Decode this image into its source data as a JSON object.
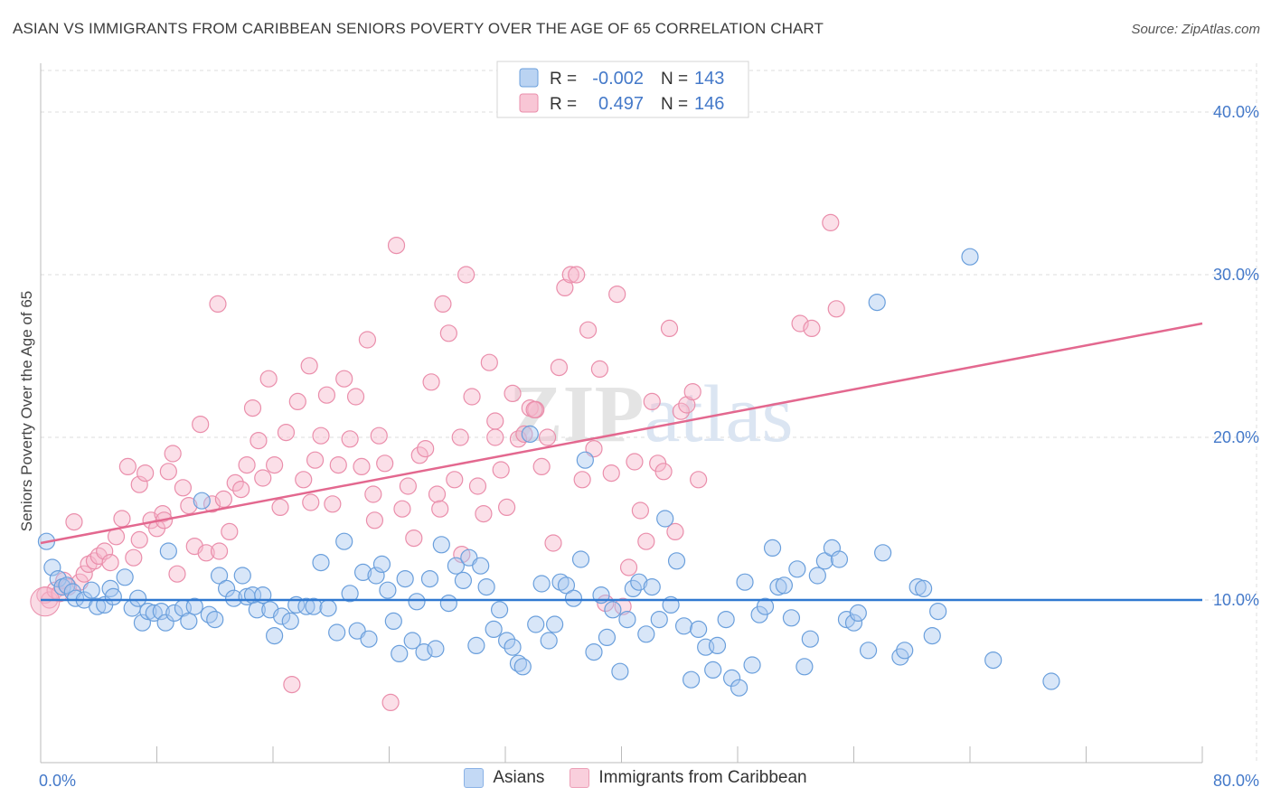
{
  "title": "ASIAN VS IMMIGRANTS FROM CARIBBEAN SENIORS POVERTY OVER THE AGE OF 65 CORRELATION CHART",
  "source": "Source: ZipAtlas.com",
  "watermark": "ZIPatlas",
  "colors": {
    "blue_fill": "#a9c8ef",
    "blue_stroke": "#6a9fdc",
    "blue_line": "#2f78d0",
    "pink_fill": "#f6b8cb",
    "pink_stroke": "#ea8eab",
    "pink_line": "#e3688f",
    "axis_text": "#4479c9",
    "grid": "#dddddd"
  },
  "stats_legend": [
    {
      "r_label": "R =",
      "r_value": "-0.002",
      "n_label": "N =",
      "n_value": "143",
      "color": "#a9c8ef"
    },
    {
      "r_label": "R =",
      "r_value": "0.497",
      "n_label": "N =",
      "n_value": "146",
      "color": "#f6b8cb"
    }
  ],
  "bottom_legend": [
    {
      "label": "Asians",
      "color": "#a9c8ef"
    },
    {
      "label": "Immigrants from Caribbean",
      "color": "#f6b8cb"
    }
  ],
  "chart_data": {
    "type": "scatter",
    "title": "ASIAN VS IMMIGRANTS FROM CARIBBEAN SENIORS POVERTY OVER THE AGE OF 65 CORRELATION CHART",
    "xlabel": "",
    "ylabel": "Seniors Poverty Over the Age of 65",
    "xlim": [
      0,
      80
    ],
    "ylim": [
      0,
      43
    ],
    "x_tick_labels": [
      "0.0%",
      "80.0%"
    ],
    "y_ticks": [
      10,
      20,
      30,
      40
    ],
    "y_tick_labels": [
      "10.0%",
      "20.0%",
      "30.0%",
      "40.0%"
    ],
    "grid": true,
    "series": [
      {
        "name": "Asians",
        "trend": {
          "x": [
            0,
            80
          ],
          "y": [
            10.0,
            10.0
          ]
        },
        "points": [
          [
            0.4,
            13.6
          ],
          [
            0.8,
            12.0
          ],
          [
            1.2,
            11.3
          ],
          [
            1.5,
            10.8
          ],
          [
            1.8,
            10.9
          ],
          [
            2.2,
            10.5
          ],
          [
            2.4,
            10.1
          ],
          [
            3.0,
            10.0
          ],
          [
            3.5,
            10.6
          ],
          [
            3.9,
            9.6
          ],
          [
            4.4,
            9.7
          ],
          [
            4.8,
            10.7
          ],
          [
            5.0,
            10.2
          ],
          [
            5.8,
            11.4
          ],
          [
            6.3,
            9.5
          ],
          [
            6.7,
            10.1
          ],
          [
            7.0,
            8.6
          ],
          [
            7.4,
            9.3
          ],
          [
            7.8,
            9.2
          ],
          [
            8.3,
            9.3
          ],
          [
            8.6,
            8.6
          ],
          [
            8.8,
            13.0
          ],
          [
            9.2,
            9.2
          ],
          [
            9.8,
            9.5
          ],
          [
            10.2,
            8.7
          ],
          [
            10.6,
            9.6
          ],
          [
            11.1,
            16.1
          ],
          [
            11.6,
            9.1
          ],
          [
            12.0,
            8.8
          ],
          [
            12.3,
            11.5
          ],
          [
            12.8,
            10.7
          ],
          [
            13.3,
            10.1
          ],
          [
            13.9,
            11.5
          ],
          [
            14.2,
            10.2
          ],
          [
            14.6,
            10.3
          ],
          [
            14.9,
            9.4
          ],
          [
            15.3,
            10.3
          ],
          [
            15.8,
            9.4
          ],
          [
            16.1,
            7.8
          ],
          [
            16.6,
            9.0
          ],
          [
            17.2,
            8.7
          ],
          [
            17.6,
            9.7
          ],
          [
            18.3,
            9.6
          ],
          [
            18.8,
            9.6
          ],
          [
            19.3,
            12.3
          ],
          [
            19.8,
            9.5
          ],
          [
            20.4,
            8.0
          ],
          [
            20.9,
            13.6
          ],
          [
            21.3,
            10.4
          ],
          [
            21.8,
            8.1
          ],
          [
            22.2,
            11.7
          ],
          [
            22.6,
            7.6
          ],
          [
            23.1,
            11.5
          ],
          [
            23.5,
            12.2
          ],
          [
            23.9,
            10.6
          ],
          [
            24.3,
            8.7
          ],
          [
            24.7,
            6.7
          ],
          [
            25.1,
            11.3
          ],
          [
            25.6,
            7.5
          ],
          [
            25.9,
            9.9
          ],
          [
            26.4,
            6.8
          ],
          [
            26.8,
            11.3
          ],
          [
            27.2,
            7.0
          ],
          [
            27.6,
            13.4
          ],
          [
            28.1,
            9.8
          ],
          [
            28.6,
            12.1
          ],
          [
            29.1,
            11.2
          ],
          [
            29.5,
            12.6
          ],
          [
            30.0,
            7.2
          ],
          [
            30.3,
            12.1
          ],
          [
            30.7,
            10.8
          ],
          [
            31.2,
            8.2
          ],
          [
            31.6,
            9.4
          ],
          [
            32.1,
            7.5
          ],
          [
            32.5,
            7.1
          ],
          [
            32.9,
            6.1
          ],
          [
            33.2,
            5.9
          ],
          [
            33.7,
            20.2
          ],
          [
            34.1,
            8.5
          ],
          [
            34.5,
            11.0
          ],
          [
            35.0,
            7.5
          ],
          [
            35.4,
            8.5
          ],
          [
            35.8,
            11.1
          ],
          [
            36.2,
            10.9
          ],
          [
            36.7,
            10.1
          ],
          [
            37.2,
            12.5
          ],
          [
            37.5,
            18.6
          ],
          [
            38.1,
            6.8
          ],
          [
            38.6,
            10.3
          ],
          [
            39.0,
            7.7
          ],
          [
            39.4,
            9.4
          ],
          [
            39.9,
            5.6
          ],
          [
            40.4,
            8.8
          ],
          [
            40.8,
            10.7
          ],
          [
            41.2,
            11.1
          ],
          [
            41.7,
            7.9
          ],
          [
            42.1,
            10.8
          ],
          [
            42.6,
            8.8
          ],
          [
            43.0,
            15.0
          ],
          [
            43.4,
            9.7
          ],
          [
            43.8,
            12.4
          ],
          [
            44.3,
            8.4
          ],
          [
            44.8,
            5.1
          ],
          [
            45.3,
            8.2
          ],
          [
            45.8,
            7.1
          ],
          [
            46.3,
            5.7
          ],
          [
            46.6,
            7.2
          ],
          [
            47.2,
            8.8
          ],
          [
            47.6,
            5.2
          ],
          [
            48.1,
            4.6
          ],
          [
            48.5,
            11.1
          ],
          [
            49.0,
            6.0
          ],
          [
            49.5,
            9.1
          ],
          [
            49.9,
            9.6
          ],
          [
            50.4,
            13.2
          ],
          [
            50.8,
            10.8
          ],
          [
            51.2,
            10.9
          ],
          [
            51.7,
            8.9
          ],
          [
            52.1,
            11.9
          ],
          [
            52.6,
            5.9
          ],
          [
            53.0,
            7.6
          ],
          [
            53.5,
            11.5
          ],
          [
            54.0,
            12.4
          ],
          [
            54.5,
            13.2
          ],
          [
            55.0,
            12.5
          ],
          [
            55.5,
            8.8
          ],
          [
            56.0,
            8.6
          ],
          [
            56.3,
            9.2
          ],
          [
            57.0,
            6.9
          ],
          [
            57.6,
            28.3
          ],
          [
            58.0,
            12.9
          ],
          [
            59.2,
            6.5
          ],
          [
            59.5,
            6.9
          ],
          [
            60.4,
            10.8
          ],
          [
            60.8,
            10.7
          ],
          [
            61.4,
            7.8
          ],
          [
            61.8,
            9.3
          ],
          [
            64.0,
            31.1
          ],
          [
            65.6,
            6.3
          ],
          [
            69.6,
            5.0
          ]
        ]
      },
      {
        "name": "Immigrants from Caribbean",
        "trend": {
          "x": [
            0,
            80
          ],
          "y": [
            13.5,
            27.0
          ]
        },
        "points": [
          [
            0.3,
            10.3
          ],
          [
            0.6,
            10.0
          ],
          [
            1.0,
            10.6
          ],
          [
            1.3,
            10.4
          ],
          [
            1.6,
            11.2
          ],
          [
            1.9,
            10.8
          ],
          [
            2.3,
            14.8
          ],
          [
            2.7,
            11.1
          ],
          [
            3.0,
            11.6
          ],
          [
            3.3,
            12.2
          ],
          [
            3.7,
            12.4
          ],
          [
            4.0,
            12.7
          ],
          [
            4.4,
            13.0
          ],
          [
            4.8,
            12.3
          ],
          [
            5.2,
            13.9
          ],
          [
            5.6,
            15.0
          ],
          [
            6.0,
            18.2
          ],
          [
            6.4,
            12.6
          ],
          [
            6.8,
            17.1
          ],
          [
            7.2,
            17.8
          ],
          [
            7.6,
            14.9
          ],
          [
            8.0,
            14.4
          ],
          [
            8.4,
            15.3
          ],
          [
            8.8,
            17.9
          ],
          [
            9.1,
            19.0
          ],
          [
            9.4,
            11.6
          ],
          [
            9.8,
            16.9
          ],
          [
            10.2,
            15.8
          ],
          [
            10.6,
            13.3
          ],
          [
            11.0,
            20.8
          ],
          [
            11.4,
            12.9
          ],
          [
            11.8,
            15.9
          ],
          [
            12.2,
            28.2
          ],
          [
            12.6,
            16.2
          ],
          [
            13.0,
            14.2
          ],
          [
            13.4,
            17.2
          ],
          [
            13.8,
            16.8
          ],
          [
            14.2,
            18.3
          ],
          [
            14.6,
            21.8
          ],
          [
            15.0,
            19.8
          ],
          [
            15.3,
            17.5
          ],
          [
            15.7,
            23.6
          ],
          [
            16.1,
            18.3
          ],
          [
            16.5,
            15.7
          ],
          [
            16.9,
            20.3
          ],
          [
            17.3,
            4.8
          ],
          [
            17.7,
            22.2
          ],
          [
            18.1,
            17.4
          ],
          [
            18.5,
            24.4
          ],
          [
            18.9,
            18.6
          ],
          [
            19.3,
            20.1
          ],
          [
            19.7,
            22.6
          ],
          [
            20.1,
            15.9
          ],
          [
            20.5,
            18.3
          ],
          [
            20.9,
            23.6
          ],
          [
            21.3,
            19.9
          ],
          [
            21.7,
            22.5
          ],
          [
            22.1,
            18.2
          ],
          [
            22.5,
            26.0
          ],
          [
            22.9,
            16.5
          ],
          [
            23.3,
            20.1
          ],
          [
            23.7,
            18.4
          ],
          [
            24.1,
            3.7
          ],
          [
            24.5,
            31.8
          ],
          [
            24.9,
            15.6
          ],
          [
            25.3,
            17.0
          ],
          [
            25.7,
            13.8
          ],
          [
            26.1,
            18.9
          ],
          [
            26.5,
            19.3
          ],
          [
            26.9,
            23.4
          ],
          [
            27.3,
            16.5
          ],
          [
            27.7,
            28.2
          ],
          [
            28.1,
            26.4
          ],
          [
            28.5,
            17.4
          ],
          [
            28.9,
            20.0
          ],
          [
            29.3,
            30.0
          ],
          [
            29.7,
            22.5
          ],
          [
            30.1,
            17.0
          ],
          [
            30.5,
            15.3
          ],
          [
            30.9,
            24.6
          ],
          [
            31.3,
            21.0
          ],
          [
            31.7,
            18.0
          ],
          [
            32.1,
            15.7
          ],
          [
            32.5,
            22.7
          ],
          [
            32.9,
            19.9
          ],
          [
            33.3,
            20.2
          ],
          [
            33.7,
            21.8
          ],
          [
            34.1,
            21.7
          ],
          [
            34.5,
            18.2
          ],
          [
            34.9,
            20.0
          ],
          [
            35.3,
            13.5
          ],
          [
            35.7,
            24.3
          ],
          [
            36.1,
            29.2
          ],
          [
            36.5,
            30.0
          ],
          [
            36.9,
            30.0
          ],
          [
            37.3,
            17.4
          ],
          [
            37.7,
            26.6
          ],
          [
            38.1,
            19.3
          ],
          [
            38.5,
            24.2
          ],
          [
            38.9,
            9.8
          ],
          [
            39.3,
            17.8
          ],
          [
            39.7,
            28.8
          ],
          [
            40.1,
            9.6
          ],
          [
            40.5,
            12.0
          ],
          [
            40.9,
            18.5
          ],
          [
            41.3,
            15.5
          ],
          [
            41.7,
            13.6
          ],
          [
            42.1,
            22.2
          ],
          [
            42.5,
            18.4
          ],
          [
            42.9,
            17.9
          ],
          [
            43.3,
            26.7
          ],
          [
            43.7,
            14.2
          ],
          [
            44.1,
            21.6
          ],
          [
            44.5,
            22.0
          ],
          [
            44.9,
            22.8
          ],
          [
            45.3,
            17.4
          ],
          [
            52.3,
            27.0
          ],
          [
            53.1,
            26.7
          ],
          [
            54.4,
            33.2
          ],
          [
            54.8,
            27.9
          ],
          [
            6.8,
            13.7
          ],
          [
            8.5,
            14.9
          ],
          [
            18.6,
            16.0
          ],
          [
            12.3,
            13.0
          ],
          [
            23.0,
            14.9
          ],
          [
            29.0,
            12.8
          ],
          [
            31.3,
            20.0
          ],
          [
            34.0,
            21.7
          ],
          [
            27.5,
            15.6
          ]
        ]
      }
    ]
  }
}
